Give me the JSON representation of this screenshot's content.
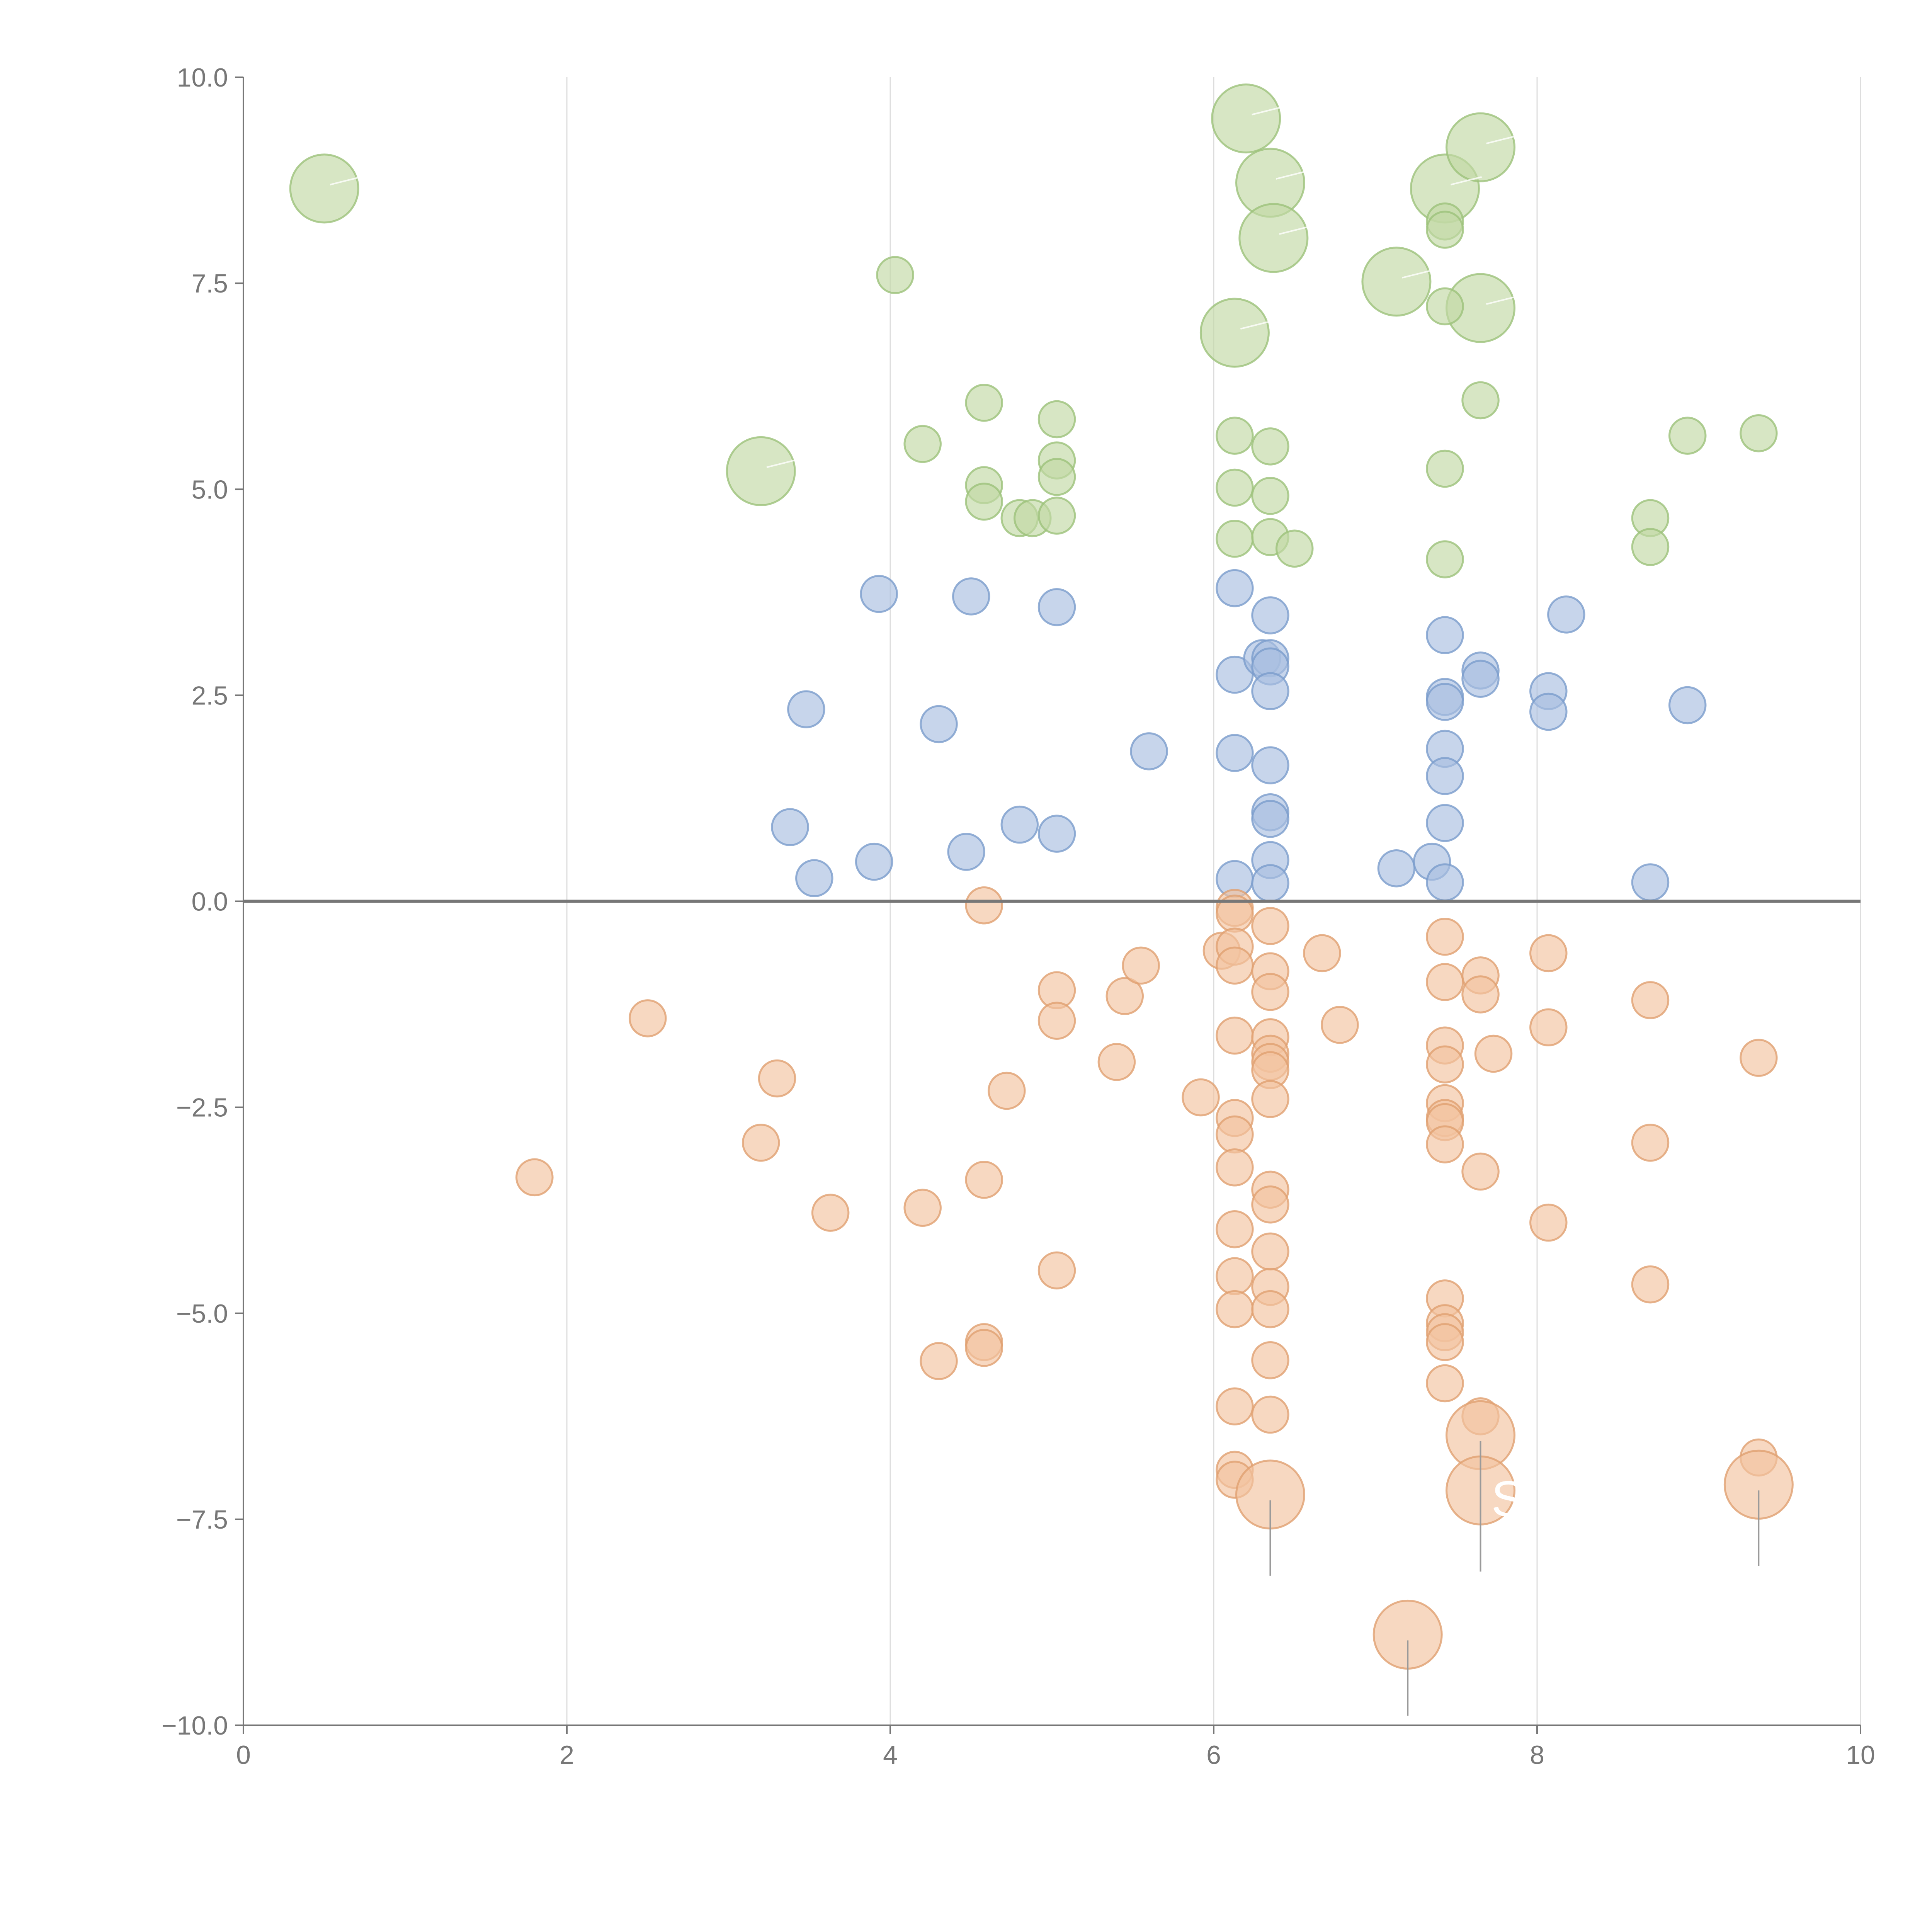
{
  "chart_data": {
    "type": "scatter",
    "title": "",
    "xlabel": "",
    "ylabel": "",
    "xlim": [
      0,
      10
    ],
    "ylim": [
      -10,
      10
    ],
    "x_ticks": [
      0,
      2,
      4,
      6,
      8,
      10
    ],
    "x_tick_labels": [
      "0",
      "2",
      "4",
      "6",
      "8",
      "10"
    ],
    "y_ticks": [
      10,
      7.5,
      5,
      2.5,
      0,
      -2.5,
      -5,
      -7.5,
      -10
    ],
    "y_tick_labels": [
      "10.0",
      "7.5",
      "5.0",
      "2.5",
      "0.0",
      "−2.5",
      "−5.0",
      "−7.5",
      "−10.0"
    ],
    "grid_x": true,
    "grid_y": false,
    "zero_line": true,
    "colors": {
      "green_fill": "#c2d9a4",
      "green_stroke": "#9cc27a",
      "blue_fill": "#a9bfe0",
      "blue_stroke": "#7b9ccc",
      "orange_fill": "#f2c3a0",
      "orange_stroke": "#e0a070"
    },
    "series": [
      {
        "name": "green",
        "color_key": "green",
        "points": [
          [
            0.5,
            8.65,
            1.6
          ],
          [
            3.2,
            5.22,
            1.6
          ],
          [
            6.2,
            9.5,
            1.6
          ],
          [
            6.35,
            8.72,
            1.6
          ],
          [
            6.37,
            8.05,
            1.6
          ],
          [
            6.13,
            6.9,
            1.6
          ],
          [
            7.13,
            7.52,
            1.6
          ],
          [
            7.43,
            8.65,
            1.6
          ],
          [
            7.65,
            9.15,
            1.6
          ],
          [
            7.65,
            7.2,
            1.6
          ],
          [
            4.03,
            7.6,
            0.85
          ],
          [
            4.2,
            5.55,
            0.85
          ],
          [
            4.58,
            6.05,
            0.85
          ],
          [
            4.58,
            5.05,
            0.85
          ],
          [
            4.58,
            4.85,
            0.85
          ],
          [
            4.8,
            4.65,
            0.85
          ],
          [
            4.88,
            4.65,
            0.85
          ],
          [
            5.03,
            5.85,
            0.85
          ],
          [
            5.03,
            5.35,
            0.85
          ],
          [
            5.03,
            5.15,
            0.85
          ],
          [
            5.03,
            4.68,
            0.85
          ],
          [
            6.13,
            5.65,
            0.85
          ],
          [
            6.13,
            5.02,
            0.85
          ],
          [
            6.13,
            4.4,
            0.85
          ],
          [
            6.35,
            5.52,
            0.85
          ],
          [
            6.35,
            4.92,
            0.85
          ],
          [
            6.35,
            4.42,
            0.85
          ],
          [
            6.5,
            4.28,
            0.85
          ],
          [
            7.43,
            8.25,
            0.85
          ],
          [
            7.43,
            8.15,
            0.85
          ],
          [
            7.43,
            7.22,
            0.85
          ],
          [
            7.43,
            5.25,
            0.85
          ],
          [
            7.43,
            4.15,
            0.85
          ],
          [
            7.65,
            6.08,
            0.85
          ],
          [
            8.7,
            4.65,
            0.85
          ],
          [
            8.7,
            4.3,
            0.85
          ],
          [
            8.93,
            5.65,
            0.85
          ],
          [
            9.37,
            5.68,
            0.85
          ]
        ]
      },
      {
        "name": "blue",
        "color_key": "blue",
        "points": [
          [
            3.38,
            0.9,
            0.85
          ],
          [
            3.48,
            2.33,
            0.85
          ],
          [
            3.53,
            0.28,
            0.85
          ],
          [
            3.9,
            0.48,
            0.85
          ],
          [
            3.93,
            3.73,
            0.85
          ],
          [
            4.3,
            2.15,
            0.85
          ],
          [
            4.47,
            0.6,
            0.85
          ],
          [
            4.5,
            3.7,
            0.85
          ],
          [
            4.8,
            0.93,
            0.85
          ],
          [
            5.03,
            3.57,
            0.85
          ],
          [
            5.03,
            0.82,
            0.85
          ],
          [
            5.6,
            1.82,
            0.85
          ],
          [
            6.13,
            3.8,
            0.85
          ],
          [
            6.13,
            2.75,
            0.85
          ],
          [
            6.13,
            1.8,
            0.85
          ],
          [
            6.13,
            0.27,
            0.85
          ],
          [
            6.3,
            2.95,
            0.85
          ],
          [
            6.35,
            3.47,
            0.85
          ],
          [
            6.35,
            2.95,
            0.85
          ],
          [
            6.35,
            2.85,
            0.85
          ],
          [
            6.35,
            2.55,
            0.85
          ],
          [
            6.35,
            1.65,
            0.85
          ],
          [
            6.35,
            1.08,
            0.85
          ],
          [
            6.35,
            1.0,
            0.85
          ],
          [
            6.35,
            0.5,
            0.85
          ],
          [
            6.35,
            0.22,
            0.85
          ],
          [
            7.13,
            0.4,
            0.85
          ],
          [
            7.35,
            0.48,
            0.85
          ],
          [
            7.43,
            3.23,
            0.85
          ],
          [
            7.43,
            2.48,
            0.85
          ],
          [
            7.43,
            2.42,
            0.85
          ],
          [
            7.43,
            1.85,
            0.85
          ],
          [
            7.43,
            1.52,
            0.85
          ],
          [
            7.43,
            0.95,
            0.85
          ],
          [
            7.43,
            0.23,
            0.85
          ],
          [
            7.65,
            2.8,
            0.85
          ],
          [
            7.65,
            2.7,
            0.85
          ],
          [
            8.07,
            2.55,
            0.85
          ],
          [
            8.07,
            2.3,
            0.85
          ],
          [
            8.18,
            3.48,
            0.85
          ],
          [
            8.7,
            0.23,
            0.85
          ],
          [
            8.93,
            2.38,
            0.85
          ]
        ]
      },
      {
        "name": "orange",
        "color_key": "orange",
        "points": [
          [
            1.8,
            -3.35,
            0.85
          ],
          [
            2.5,
            -1.42,
            0.85
          ],
          [
            3.2,
            -2.93,
            0.85
          ],
          [
            3.3,
            -2.15,
            0.85
          ],
          [
            3.63,
            -3.78,
            0.85
          ],
          [
            4.2,
            -3.72,
            0.85
          ],
          [
            4.3,
            -5.58,
            0.85
          ],
          [
            4.58,
            -0.05,
            0.85
          ],
          [
            4.58,
            -3.38,
            0.85
          ],
          [
            4.58,
            -5.35,
            0.85
          ],
          [
            4.58,
            -5.42,
            0.85
          ],
          [
            4.72,
            -2.3,
            0.85
          ],
          [
            5.03,
            -1.08,
            0.85
          ],
          [
            5.03,
            -1.45,
            0.85
          ],
          [
            5.03,
            -4.48,
            0.85
          ],
          [
            5.4,
            -1.95,
            0.85
          ],
          [
            5.45,
            -1.15,
            0.85
          ],
          [
            5.55,
            -0.78,
            0.85
          ],
          [
            5.92,
            -2.38,
            0.85
          ],
          [
            6.05,
            -0.6,
            0.85
          ],
          [
            6.13,
            -0.08,
            0.85
          ],
          [
            6.13,
            -0.15,
            0.85
          ],
          [
            6.13,
            -0.55,
            0.85
          ],
          [
            6.13,
            -0.78,
            0.85
          ],
          [
            6.13,
            -1.63,
            0.85
          ],
          [
            6.13,
            -2.63,
            0.85
          ],
          [
            6.13,
            -2.83,
            0.85
          ],
          [
            6.13,
            -3.23,
            0.85
          ],
          [
            6.13,
            -3.98,
            0.85
          ],
          [
            6.13,
            -4.55,
            0.85
          ],
          [
            6.13,
            -4.95,
            0.85
          ],
          [
            6.13,
            -6.13,
            0.85
          ],
          [
            6.13,
            -6.9,
            0.85
          ],
          [
            6.13,
            -7.02,
            0.85
          ],
          [
            6.35,
            -0.3,
            0.85
          ],
          [
            6.35,
            -0.85,
            0.85
          ],
          [
            6.35,
            -1.1,
            0.85
          ],
          [
            6.35,
            -1.65,
            0.85
          ],
          [
            6.35,
            -1.85,
            0.85
          ],
          [
            6.35,
            -1.95,
            0.85
          ],
          [
            6.35,
            -2.05,
            0.85
          ],
          [
            6.35,
            -2.4,
            0.85
          ],
          [
            6.35,
            -3.5,
            0.85
          ],
          [
            6.35,
            -3.68,
            0.85
          ],
          [
            6.35,
            -4.25,
            0.85
          ],
          [
            6.35,
            -4.68,
            0.85
          ],
          [
            6.35,
            -4.95,
            0.85
          ],
          [
            6.35,
            -5.57,
            0.85
          ],
          [
            6.35,
            -6.23,
            0.85
          ],
          [
            6.67,
            -0.63,
            0.85
          ],
          [
            6.78,
            -1.5,
            0.85
          ],
          [
            7.43,
            -0.43,
            0.85
          ],
          [
            7.43,
            -0.98,
            0.85
          ],
          [
            7.43,
            -1.75,
            0.85
          ],
          [
            7.43,
            -1.98,
            0.85
          ],
          [
            7.43,
            -2.45,
            0.85
          ],
          [
            7.43,
            -2.63,
            0.85
          ],
          [
            7.43,
            -2.68,
            0.85
          ],
          [
            7.43,
            -2.95,
            0.85
          ],
          [
            7.43,
            -4.82,
            0.85
          ],
          [
            7.43,
            -5.12,
            0.85
          ],
          [
            7.43,
            -5.23,
            0.85
          ],
          [
            7.43,
            -5.35,
            0.85
          ],
          [
            7.43,
            -5.85,
            0.85
          ],
          [
            7.65,
            -0.9,
            0.85
          ],
          [
            7.65,
            -1.13,
            0.85
          ],
          [
            7.65,
            -3.28,
            0.85
          ],
          [
            7.65,
            -6.25,
            0.85
          ],
          [
            7.73,
            -1.85,
            0.85
          ],
          [
            8.07,
            -0.63,
            0.85
          ],
          [
            8.07,
            -1.53,
            0.85
          ],
          [
            8.07,
            -3.9,
            0.85
          ],
          [
            8.7,
            -1.2,
            0.85
          ],
          [
            8.7,
            -2.93,
            0.85
          ],
          [
            8.7,
            -4.65,
            0.85
          ],
          [
            9.37,
            -1.9,
            0.85
          ],
          [
            9.37,
            -6.75,
            0.85
          ],
          [
            6.35,
            -7.2,
            1.6
          ],
          [
            7.65,
            -6.48,
            1.6
          ],
          [
            7.65,
            -7.15,
            1.6
          ],
          [
            7.2,
            -8.9,
            1.6
          ],
          [
            9.37,
            -7.08,
            1.6
          ]
        ]
      }
    ],
    "annotations": [
      {
        "text": "S",
        "x": 7.82,
        "y": -7.25
      }
    ]
  }
}
